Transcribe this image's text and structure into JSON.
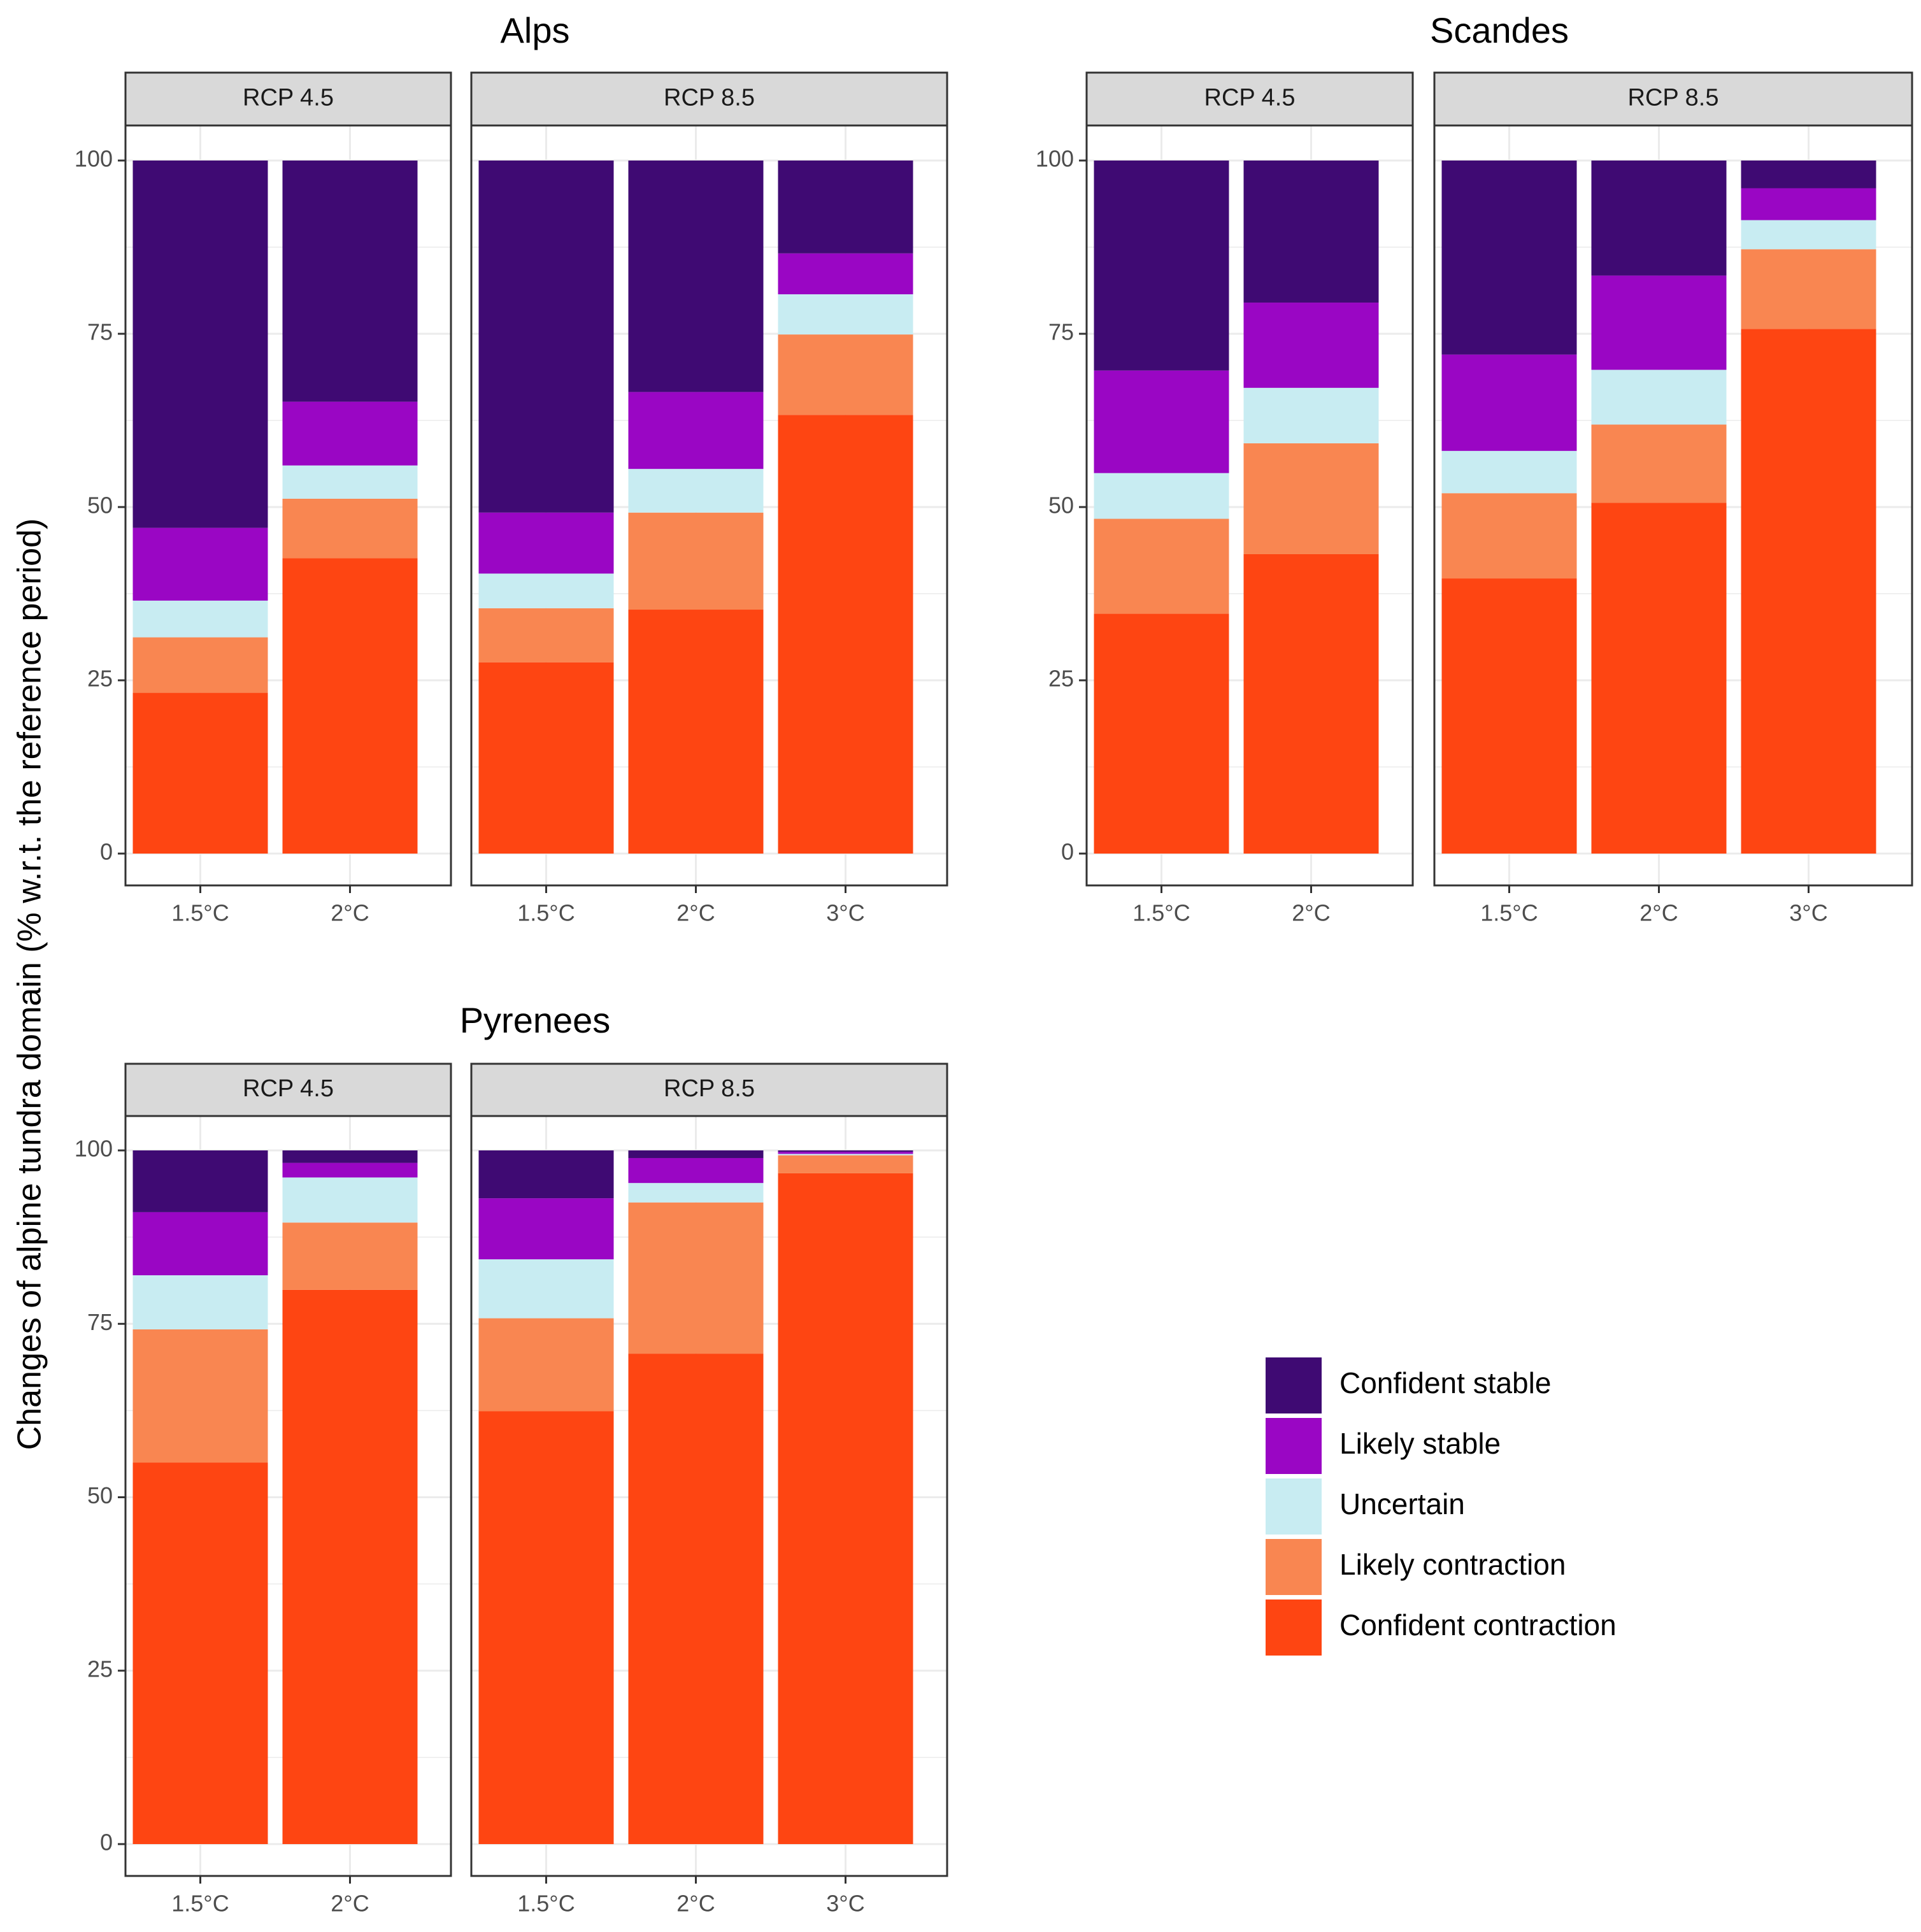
{
  "chart_data": {
    "type": "bar",
    "stacked": true,
    "ylabel": "Changes of alpine tundra domain (% w.r.t. the reference period)",
    "ylim": [
      0,
      100
    ],
    "yticks": [
      0,
      25,
      50,
      75,
      100
    ],
    "categories_order": [
      "Confident contraction",
      "Likely contraction",
      "Uncertain",
      "Likely stable",
      "Confident stable"
    ],
    "colors": {
      "Confident stable": "#3f0a73",
      "Likely stable": "#9a06c4",
      "Uncertain": "#c8ecf2",
      "Likely contraction": "#f98651",
      "Confident contraction": "#fe4512"
    },
    "legend": {
      "position": "bottom-right",
      "items": [
        "Confident stable",
        "Likely stable",
        "Uncertain",
        "Likely contraction",
        "Confident contraction"
      ]
    },
    "regions": [
      {
        "title": "Alps",
        "panels": [
          {
            "strip": "RCP 4.5",
            "bars": [
              {
                "x": "1.5°C",
                "values": [
                  23.2,
                  8.0,
                  5.3,
                  10.5,
                  53.0
                ]
              },
              {
                "x": "2°C",
                "values": [
                  42.6,
                  8.6,
                  4.8,
                  9.2,
                  34.8
                ]
              }
            ]
          },
          {
            "strip": "RCP 8.5",
            "bars": [
              {
                "x": "1.5°C",
                "values": [
                  27.6,
                  7.8,
                  5.0,
                  8.8,
                  50.8
                ]
              },
              {
                "x": "2°C",
                "values": [
                  35.2,
                  14.0,
                  6.3,
                  11.1,
                  33.4
                ]
              },
              {
                "x": "3°C",
                "values": [
                  63.3,
                  11.6,
                  5.8,
                  5.9,
                  13.4
                ]
              }
            ]
          }
        ]
      },
      {
        "title": "Scandes",
        "panels": [
          {
            "strip": "RCP 4.5",
            "bars": [
              {
                "x": "1.5°C",
                "values": [
                  34.6,
                  13.7,
                  6.6,
                  14.8,
                  30.3
                ]
              },
              {
                "x": "2°C",
                "values": [
                  43.2,
                  16.0,
                  8.0,
                  12.3,
                  20.5
                ]
              }
            ]
          },
          {
            "strip": "RCP 8.5",
            "bars": [
              {
                "x": "1.5°C",
                "values": [
                  39.7,
                  12.3,
                  6.1,
                  13.9,
                  28.0
                ]
              },
              {
                "x": "2°C",
                "values": [
                  50.6,
                  11.3,
                  7.9,
                  13.6,
                  16.6
                ]
              },
              {
                "x": "3°C",
                "values": [
                  75.7,
                  11.5,
                  4.2,
                  4.6,
                  4.0
                ]
              }
            ]
          }
        ]
      },
      {
        "title": "Pyrenees",
        "panels": [
          {
            "strip": "RCP 4.5",
            "bars": [
              {
                "x": "1.5°C",
                "values": [
                  55.0,
                  19.2,
                  7.8,
                  9.1,
                  8.9
                ]
              },
              {
                "x": "2°C",
                "values": [
                  79.9,
                  9.7,
                  6.5,
                  2.1,
                  1.8
                ]
              }
            ]
          },
          {
            "strip": "RCP 8.5",
            "bars": [
              {
                "x": "1.5°C",
                "values": [
                  62.4,
                  13.4,
                  8.5,
                  8.8,
                  6.9
                ]
              },
              {
                "x": "2°C",
                "values": [
                  70.7,
                  21.8,
                  2.8,
                  3.6,
                  1.1
                ]
              },
              {
                "x": "3°C",
                "values": [
                  96.7,
                  2.6,
                  0.2,
                  0.3,
                  0.2
                ]
              }
            ]
          }
        ]
      }
    ]
  }
}
